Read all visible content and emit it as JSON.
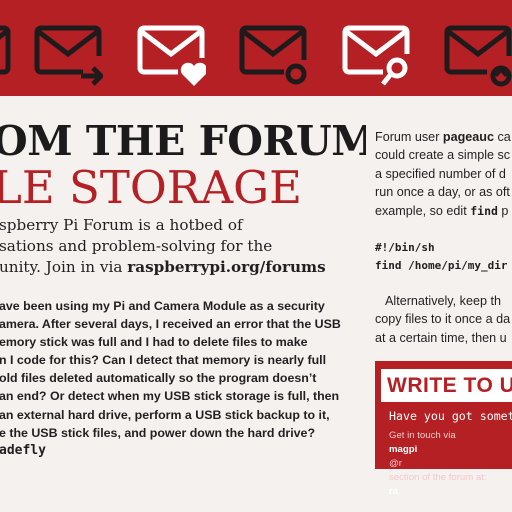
{
  "banner": {
    "color": "#b52025",
    "icons": [
      {
        "name": "mail-partial-icon"
      },
      {
        "name": "mail-forward-icon"
      },
      {
        "name": "mail-heart-icon"
      },
      {
        "name": "mail-circle-icon"
      },
      {
        "name": "mail-search-icon"
      },
      {
        "name": "mail-up-icon"
      }
    ]
  },
  "article": {
    "title_line1": "OM THE FORUM:",
    "title_line2": "LE STORAGE",
    "intro_line1": "spberry Pi Forum is a hotbed of",
    "intro_line2": "sations and problem-solving for the",
    "intro_line3_prefix": "unity. Join in via ",
    "intro_link": "raspberrypi.org/forums",
    "question_lines": [
      "ave been using my Pi and Camera Module as a security",
      "amera. After several days, I received an error that the USB",
      "emory stick was full and I had to delete files to make",
      "n I code for this? Can I detect that memory is nearly full",
      " old files deleted automatically so the program doesn’t",
      "an end? Or detect when my USB stick storage is full, then",
      " an external hard drive, perform a USB stick backup to it,",
      "e the USB stick files, and power down the hard drive?"
    ],
    "author": "adefly"
  },
  "right_column": {
    "line1_prefix": "Forum user ",
    "line1_user": "pageauc",
    "line1_suffix": " ca",
    "line2": "could create a simple sc",
    "line3": "a specified number of d",
    "line4": "run once a day, or as oft",
    "line5_prefix": "example, so edit ",
    "line5_cmd": "find",
    "line5_suffix": " p",
    "code_line1": "#!/bin/sh",
    "code_line2": "find /home/pi/my_dir",
    "para2_line1": "Alternatively, keep th",
    "para2_line2": "copy files to it once a da",
    "para2_line3": "at a certain time, then u"
  },
  "write_box": {
    "title": "WRITE TO U",
    "subtitle": "Have you got somethi",
    "body_line1_prefix": "Get in touch via ",
    "body_line1_bold": "magpi",
    "body_line1_suffix": "@r",
    "body_line2_prefix": "section of the forum at: ",
    "body_line2_bold": "ra"
  }
}
